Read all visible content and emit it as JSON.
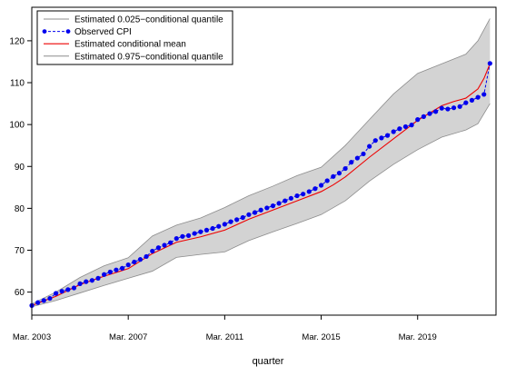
{
  "chart_data": {
    "type": "line",
    "xlabel": "quarter",
    "ylabel": "",
    "xlim": [
      2003.0,
      2022.25
    ],
    "ylim": [
      54.5,
      128
    ],
    "x_ticks": [
      {
        "value": 2003.0,
        "label": "Mar. 2003"
      },
      {
        "value": 2007.0,
        "label": "Mar. 2007"
      },
      {
        "value": 2011.0,
        "label": "Mar. 2011"
      },
      {
        "value": 2015.0,
        "label": "Mar. 2015"
      },
      {
        "value": 2019.0,
        "label": "Mar. 2019"
      }
    ],
    "y_ticks": [
      60,
      70,
      80,
      90,
      100,
      110,
      120
    ],
    "legend_position": "top-left",
    "legend": [
      {
        "label": "Estimated 0.025−conditional quantile",
        "style": "grey-line"
      },
      {
        "label": "Observed CPI",
        "style": "blue-dots"
      },
      {
        "label": "Estimated conditional mean",
        "style": "red-line"
      },
      {
        "label": "Estimated 0.975−conditional quantile",
        "style": "grey-line"
      }
    ],
    "colors": {
      "band_fill": "#d3d3d3",
      "band_edge": "#8c8c8c",
      "observed": "#0000ee",
      "mean": "#ee0000"
    },
    "series": [
      {
        "name": "Observed CPI",
        "x": [
          2003.0,
          2003.25,
          2003.5,
          2003.75,
          2004.0,
          2004.25,
          2004.5,
          2004.75,
          2005.0,
          2005.25,
          2005.5,
          2005.75,
          2006.0,
          2006.25,
          2006.5,
          2006.75,
          2007.0,
          2007.25,
          2007.5,
          2007.75,
          2008.0,
          2008.25,
          2008.5,
          2008.75,
          2009.0,
          2009.25,
          2009.5,
          2009.75,
          2010.0,
          2010.25,
          2010.5,
          2010.75,
          2011.0,
          2011.25,
          2011.5,
          2011.75,
          2012.0,
          2012.25,
          2012.5,
          2012.75,
          2013.0,
          2013.25,
          2013.5,
          2013.75,
          2014.0,
          2014.25,
          2014.5,
          2014.75,
          2015.0,
          2015.25,
          2015.5,
          2015.75,
          2016.0,
          2016.25,
          2016.5,
          2016.75,
          2017.0,
          2017.25,
          2017.5,
          2017.75,
          2018.0,
          2018.25,
          2018.5,
          2018.75,
          2019.0,
          2019.25,
          2019.5,
          2019.75,
          2020.0,
          2020.25,
          2020.5,
          2020.75,
          2021.0,
          2021.25,
          2021.5,
          2021.75,
          2022.0
        ],
        "y": [
          56.8,
          57.5,
          58.0,
          58.5,
          59.7,
          60.2,
          60.6,
          61.0,
          62.0,
          62.5,
          62.8,
          63.3,
          64.2,
          64.8,
          65.3,
          65.7,
          66.5,
          67.2,
          67.8,
          68.5,
          69.8,
          70.6,
          71.2,
          71.8,
          72.8,
          73.3,
          73.5,
          74.0,
          74.4,
          74.8,
          75.2,
          75.7,
          76.2,
          76.8,
          77.3,
          77.8,
          78.5,
          79.0,
          79.6,
          80.1,
          80.6,
          81.2,
          81.8,
          82.4,
          83.0,
          83.4,
          84.0,
          84.7,
          85.5,
          86.6,
          87.6,
          88.4,
          89.5,
          91.0,
          92.0,
          93.0,
          94.8,
          96.2,
          96.8,
          97.4,
          98.3,
          99.0,
          99.5,
          99.9,
          101.2,
          101.9,
          102.6,
          103.1,
          103.9,
          103.7,
          104.0,
          104.3,
          105.2,
          105.8,
          106.5,
          107.2,
          114.6
        ]
      },
      {
        "name": "Estimated conditional mean",
        "x": [
          2003.0,
          2004.0,
          2005.0,
          2006.0,
          2007.0,
          2008.0,
          2009.0,
          2010.0,
          2011.0,
          2012.0,
          2013.0,
          2014.0,
          2015.0,
          2015.5,
          2016.0,
          2017.0,
          2018.0,
          2019.0,
          2020.0,
          2020.5,
          2021.0,
          2021.5,
          2021.75,
          2022.0
        ],
        "y": [
          56.8,
          59.0,
          61.8,
          63.8,
          65.6,
          69.2,
          71.9,
          73.2,
          74.8,
          77.4,
          79.6,
          81.8,
          84.0,
          85.6,
          87.5,
          92.2,
          96.6,
          101.0,
          104.5,
          105.5,
          106.3,
          108.5,
          111.0,
          114.5
        ]
      },
      {
        "name": "Estimated 0.025−conditional quantile",
        "x": [
          2003.0,
          2004.0,
          2005.0,
          2006.0,
          2007.0,
          2008.0,
          2009.0,
          2010.0,
          2011.0,
          2012.0,
          2013.0,
          2014.0,
          2015.0,
          2016.0,
          2017.0,
          2018.0,
          2019.0,
          2020.0,
          2021.0,
          2021.5,
          2022.0
        ],
        "y": [
          56.5,
          58.0,
          59.8,
          61.6,
          63.3,
          65.0,
          68.3,
          69.0,
          69.6,
          72.3,
          74.4,
          76.4,
          78.5,
          81.8,
          86.5,
          90.5,
          94.0,
          97.0,
          98.7,
          100.2,
          105.0
        ]
      },
      {
        "name": "Estimated 0.975−conditional quantile",
        "x": [
          2003.0,
          2004.0,
          2005.0,
          2006.0,
          2007.0,
          2008.0,
          2009.0,
          2010.0,
          2011.0,
          2012.0,
          2013.0,
          2014.0,
          2015.0,
          2016.0,
          2017.0,
          2018.0,
          2019.0,
          2020.0,
          2021.0,
          2021.5,
          2022.0
        ],
        "y": [
          57.2,
          60.0,
          63.5,
          66.3,
          68.2,
          73.4,
          76.0,
          77.7,
          80.2,
          83.0,
          85.3,
          87.8,
          89.8,
          95.0,
          101.2,
          107.3,
          112.2,
          114.5,
          116.8,
          120.0,
          125.3
        ]
      }
    ]
  }
}
